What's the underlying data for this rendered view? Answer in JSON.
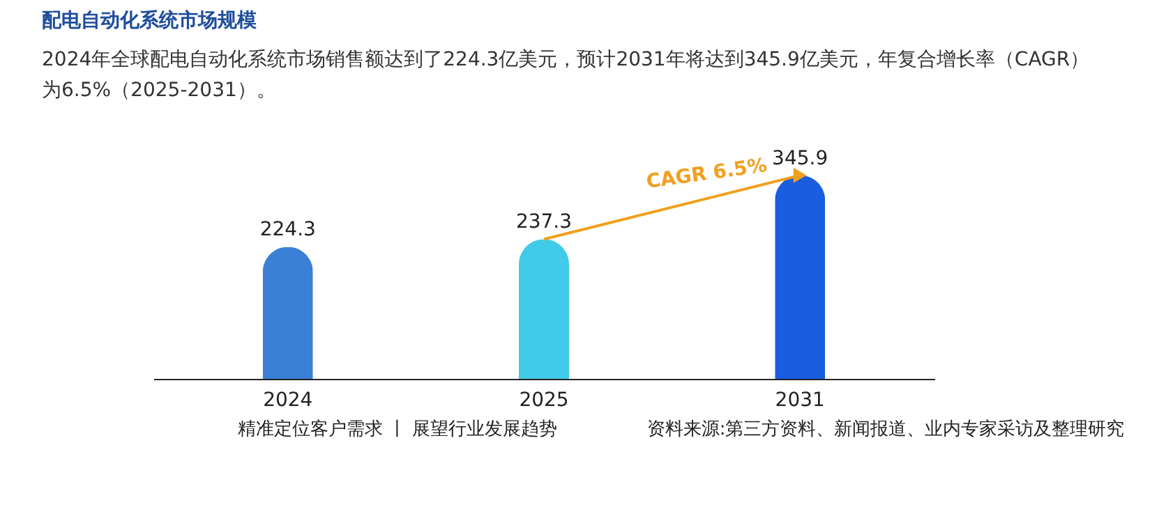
{
  "chart_data": {
    "type": "bar",
    "title": "配电自动化系统市场规模",
    "subtitle": "2024年全球配电自动化系统市场销售额达到了224.3亿美元，预计2031年将达到345.9亿美元，年复合增长率（CAGR）为6.5%（2025-2031）。",
    "categories": [
      "2024",
      "2025",
      "2031"
    ],
    "values": [
      224.3,
      237.3,
      345.9
    ],
    "colors": [
      "#3a80d6",
      "#42cbe8",
      "#1a5de0"
    ],
    "data_labels": true,
    "tick_labels": "x",
    "annotations": [
      "CAGR 6.5%",
      "精准定位客户需求 丨 展望行业发展趋势",
      "资料来源:第三方资料、新闻报道、业内专家采访及整理研究"
    ]
  }
}
